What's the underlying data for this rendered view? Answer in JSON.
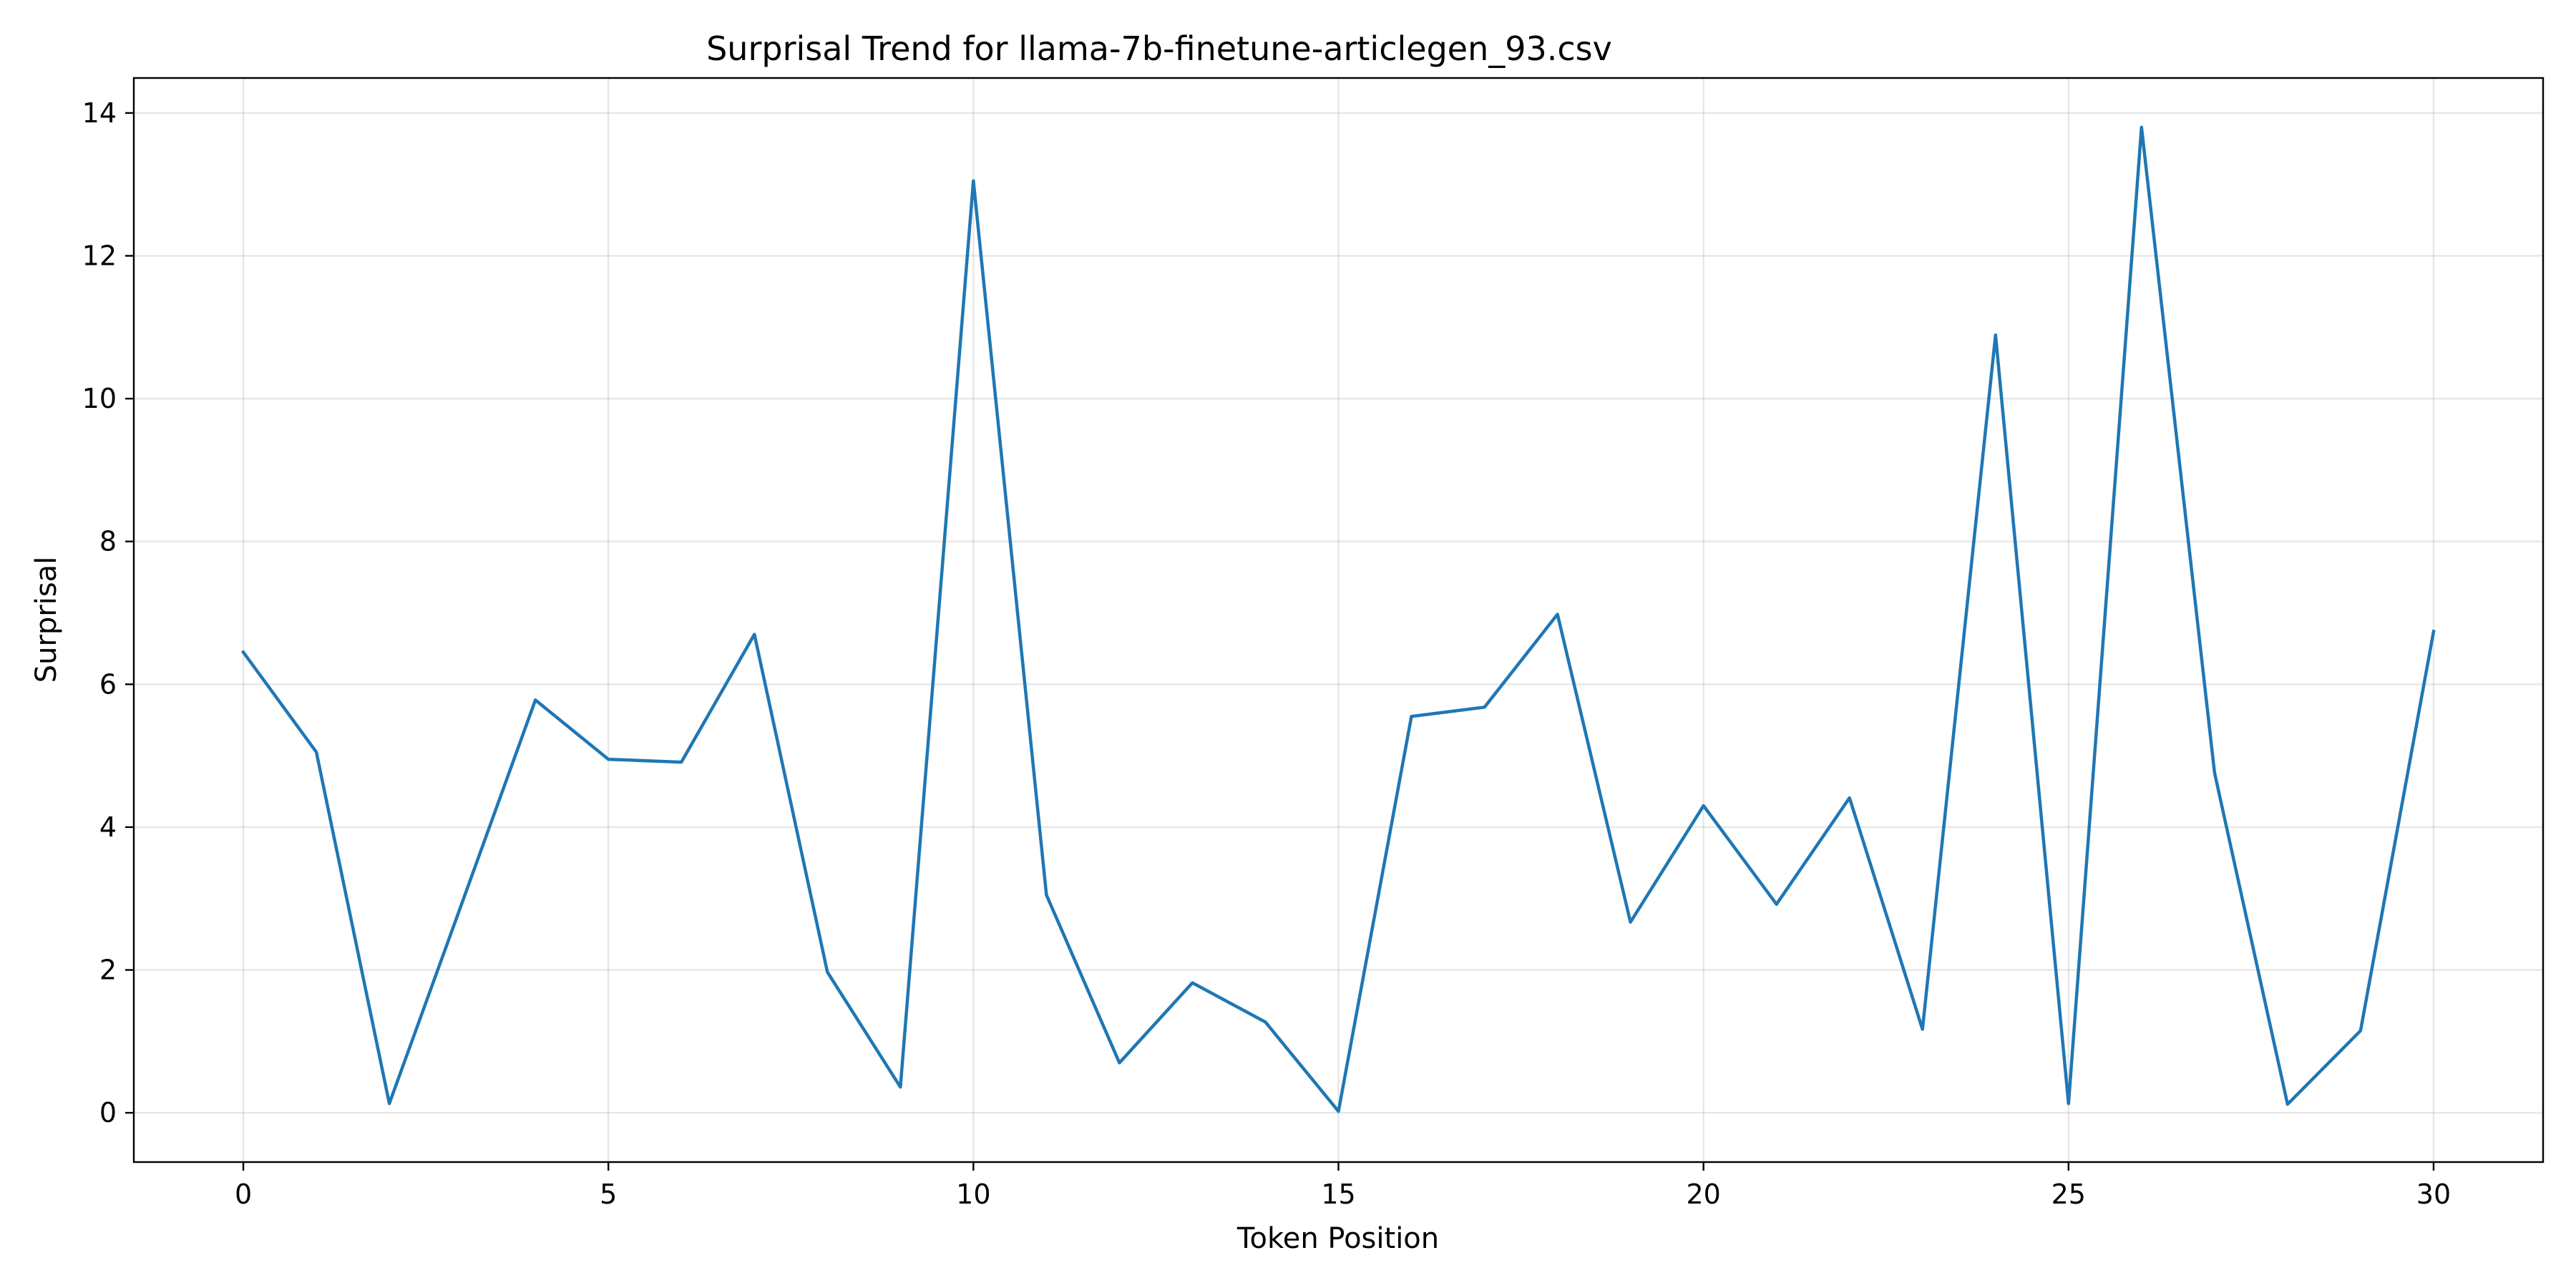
{
  "chart_data": {
    "type": "line",
    "title": "Surprisal Trend for llama-7b-finetune-articlegen_93.csv",
    "xlabel": "Token Position",
    "ylabel": "Surprisal",
    "xlim": [
      -1.5,
      31.5
    ],
    "ylim": [
      -0.69,
      14.49
    ],
    "xticks": [
      0,
      5,
      10,
      15,
      20,
      25,
      30
    ],
    "yticks": [
      0,
      2,
      4,
      6,
      8,
      10,
      12,
      14
    ],
    "grid": true,
    "series": [
      {
        "color": "#1f77b4",
        "x": [
          0,
          1,
          2,
          3,
          4,
          5,
          6,
          7,
          8,
          9,
          10,
          11,
          12,
          13,
          14,
          15,
          16,
          17,
          18,
          19,
          20,
          21,
          22,
          23,
          24,
          25,
          26,
          27,
          28,
          29,
          30
        ],
        "values": [
          6.45,
          5.05,
          0.13,
          2.95,
          5.78,
          4.95,
          4.91,
          6.7,
          1.97,
          0.36,
          13.05,
          3.05,
          0.7,
          1.82,
          1.27,
          0.02,
          5.55,
          5.68,
          6.98,
          2.67,
          4.3,
          2.92,
          4.41,
          1.17,
          10.89,
          0.13,
          13.8,
          4.76,
          0.12,
          1.15,
          6.74
        ]
      }
    ]
  }
}
